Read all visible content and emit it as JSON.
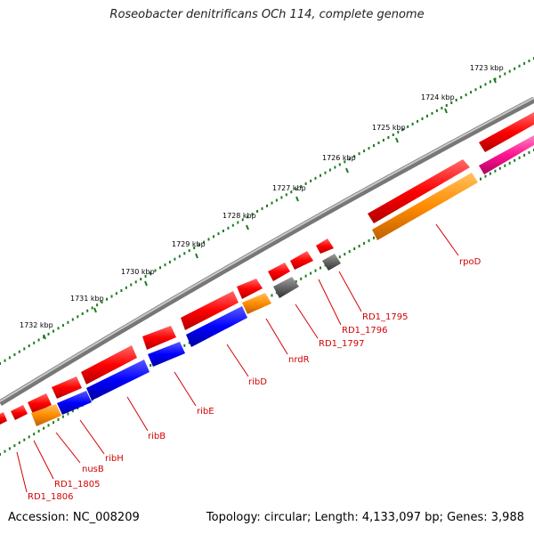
{
  "title": "Roseobacter denitrificans OCh 114, complete genome",
  "footer": {
    "accession": "Accession: NC_008209",
    "topology": "Topology: circular; Length: 4,133,097 bp; Genes: 3,988"
  },
  "colors": {
    "backbone": "#888888",
    "tick": "#1e7a1e",
    "label": "#d40000",
    "cds": "#ff0000",
    "rna": "#ff8c00",
    "rib": "#0000ff",
    "other": "#666666",
    "pink": "#ff1493"
  },
  "kbp_labels": [
    "1723 kbp",
    "1724 kbp",
    "1725 kbp",
    "1726 kbp",
    "1727 kbp",
    "1728 kbp",
    "1729 kbp",
    "1730 kbp",
    "1731 kbp",
    "1732 kbp"
  ],
  "gene_labels": [
    "rpoD",
    "RD1_1795",
    "RD1_1796",
    "RD1_1797",
    "nrdR",
    "ribD",
    "ribE",
    "ribB",
    "ribH",
    "nusB",
    "RD1_1805",
    "RD1_1806"
  ]
}
